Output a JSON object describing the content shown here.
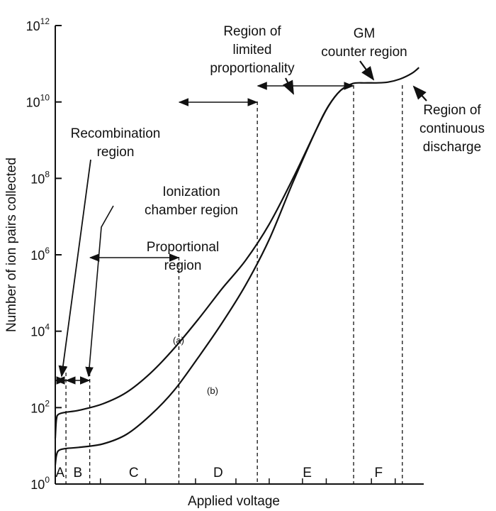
{
  "chart_data": {
    "type": "line",
    "title": "",
    "xlabel": "Applied voltage",
    "ylabel": "Number of ion pairs collected",
    "y_scale": "log",
    "y_ticks": [
      {
        "base": "10",
        "exp": "0"
      },
      {
        "base": "10",
        "exp": "2"
      },
      {
        "base": "10",
        "exp": "4"
      },
      {
        "base": "10",
        "exp": "6"
      },
      {
        "base": "10",
        "exp": "8"
      },
      {
        "base": "10",
        "exp": "10"
      },
      {
        "base": "10",
        "exp": "12"
      }
    ],
    "ylim_exponent": [
      0,
      12
    ],
    "x_region_letters": [
      "A",
      "B",
      "C",
      "D",
      "E",
      "F"
    ],
    "series": [
      {
        "name": "(a)",
        "points": [
          [
            0.0,
            1.2
          ],
          [
            0.05,
            1.7
          ],
          [
            0.15,
            1.83
          ],
          [
            0.45,
            1.88
          ],
          [
            1.0,
            1.93
          ],
          [
            2.0,
            2.1
          ],
          [
            3.0,
            2.4
          ],
          [
            4.0,
            2.9
          ],
          [
            5.0,
            3.55
          ],
          [
            6.0,
            4.3
          ],
          [
            7.0,
            5.1
          ],
          [
            8.0,
            5.85
          ],
          [
            9.0,
            6.8
          ],
          [
            10.0,
            8.0
          ],
          [
            11.0,
            9.3
          ],
          [
            11.5,
            9.9
          ],
          [
            12.0,
            10.3
          ],
          [
            12.5,
            10.48
          ],
          [
            13.0,
            10.5
          ],
          [
            13.5,
            10.5
          ],
          [
            14.0,
            10.52
          ],
          [
            14.5,
            10.6
          ],
          [
            15.0,
            10.75
          ],
          [
            15.3,
            10.9
          ]
        ]
      },
      {
        "name": "(b)",
        "points": [
          [
            0.0,
            0.5
          ],
          [
            0.05,
            0.75
          ],
          [
            0.15,
            0.88
          ],
          [
            0.45,
            0.93
          ],
          [
            1.0,
            0.96
          ],
          [
            2.0,
            1.05
          ],
          [
            3.0,
            1.3
          ],
          [
            4.0,
            1.8
          ],
          [
            5.0,
            2.45
          ],
          [
            6.0,
            3.3
          ],
          [
            7.0,
            4.2
          ],
          [
            8.0,
            5.2
          ],
          [
            9.0,
            6.4
          ],
          [
            10.0,
            7.9
          ],
          [
            11.0,
            9.3
          ],
          [
            11.5,
            9.9
          ],
          [
            12.0,
            10.3
          ],
          [
            12.5,
            10.48
          ]
        ]
      }
    ],
    "region_boundaries": [
      0.45,
      1.45,
      5.2,
      8.5,
      12.55,
      14.6
    ],
    "legend": "none",
    "grid": false
  },
  "annotations": {
    "recombination": [
      "Recombination",
      "region"
    ],
    "ionization": [
      "Ionization",
      "chamber region"
    ],
    "proportional": [
      "Proportional",
      "region"
    ],
    "limited": [
      "Region of",
      "limited",
      "proportionality"
    ],
    "gm": [
      "GM",
      "counter region"
    ],
    "continuous": [
      "Region of",
      "continuous",
      "discharge"
    ]
  },
  "colors": {
    "ink": "#111111",
    "background": "#ffffff"
  }
}
